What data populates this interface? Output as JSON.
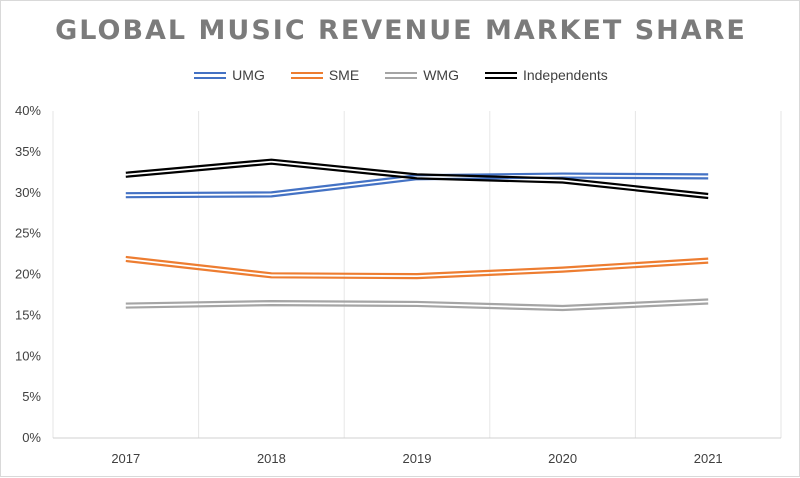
{
  "chart_data": {
    "type": "line",
    "title": "GLOBAL MUSIC REVENUE MARKET SHARE",
    "xlabel": "",
    "ylabel": "",
    "categories": [
      "2017",
      "2018",
      "2019",
      "2020",
      "2021"
    ],
    "ylim": [
      0,
      40
    ],
    "yticks": [
      0,
      5,
      10,
      15,
      20,
      25,
      30,
      35,
      40
    ],
    "ytick_labels": [
      "0%",
      "5%",
      "10%",
      "15%",
      "20%",
      "25%",
      "30%",
      "35%",
      "40%"
    ],
    "grid": "vertical",
    "legend_position": "top",
    "series": [
      {
        "name": "UMG",
        "color": "#4472c4",
        "values": [
          29.7,
          29.8,
          31.9,
          32.1,
          32.0
        ]
      },
      {
        "name": "SME",
        "color": "#ed7d31",
        "values": [
          21.9,
          19.9,
          19.8,
          20.6,
          21.7
        ]
      },
      {
        "name": "WMG",
        "color": "#a5a5a5",
        "values": [
          16.2,
          16.5,
          16.4,
          15.9,
          16.7
        ]
      },
      {
        "name": "Independents",
        "color": "#000000",
        "values": [
          32.2,
          33.8,
          32.0,
          31.5,
          29.6
        ]
      }
    ]
  }
}
